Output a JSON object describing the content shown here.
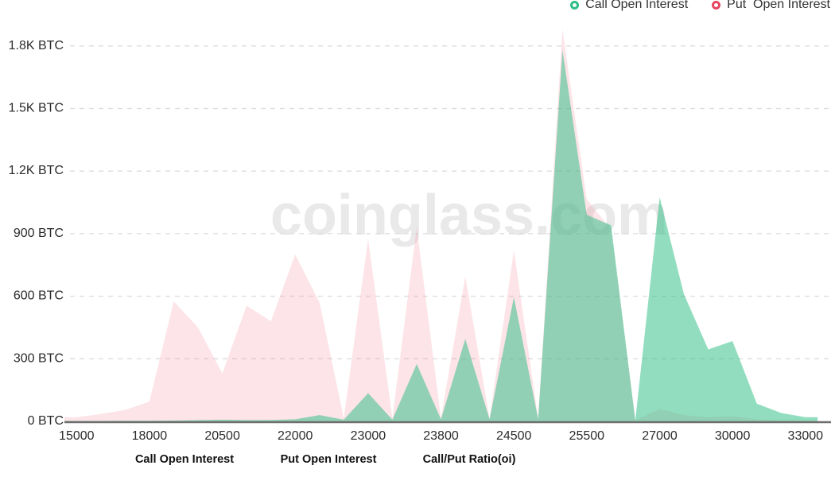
{
  "watermark": "coinglass.com",
  "legend": {
    "items": [
      {
        "label": "Call Open Interest",
        "color": "#2ebd85"
      },
      {
        "label": "Put  Open Interest",
        "color": "#e84560"
      }
    ]
  },
  "footer_tabs": [
    {
      "label": "Call Open Interest"
    },
    {
      "label": "Put Open Interest"
    },
    {
      "label": "Call/Put Ratio(oi)"
    }
  ],
  "chart_data": {
    "type": "area",
    "title": "",
    "xlabel": "",
    "ylabel": "",
    "unit": "BTC",
    "ylim": [
      0,
      1950
    ],
    "grid": "horizontal-dashed",
    "legend_position": "top-right",
    "categories": [
      "15000",
      "16000",
      "17000",
      "18000",
      "19000",
      "20000",
      "20500",
      "21000",
      "21500",
      "22000",
      "22250",
      "22750",
      "23000",
      "23250",
      "23500",
      "23800",
      "24000",
      "24250",
      "24500",
      "24750",
      "25000",
      "25500",
      "26000",
      "26500",
      "27000",
      "28000",
      "29000",
      "30000",
      "31000",
      "32000",
      "33000"
    ],
    "x_tick_labels": [
      "15000",
      "18000",
      "20500",
      "22000",
      "23000",
      "23800",
      "24500",
      "25500",
      "27000",
      "30000",
      "33000"
    ],
    "y_ticks": [
      "0 BTC",
      "300 BTC",
      "600 BTC",
      "900 BTC",
      "1.2K BTC",
      "1.5K BTC",
      "1.8K BTC"
    ],
    "series": [
      {
        "name": "Put Open Interest",
        "color": "#e84560",
        "fill": "rgba(240,130,150,0.22)",
        "values": [
          20,
          35,
          55,
          95,
          575,
          450,
          230,
          555,
          480,
          800,
          570,
          15,
          875,
          15,
          930,
          15,
          695,
          15,
          820,
          15,
          1880,
          1065,
          920,
          5,
          60,
          30,
          20,
          25,
          10,
          5,
          5
        ]
      },
      {
        "name": "Call Open Interest",
        "color": "#2ebd85",
        "fill": "rgba(46,189,133,0.52)",
        "values": [
          2,
          2,
          3,
          3,
          4,
          6,
          8,
          6,
          7,
          10,
          30,
          8,
          135,
          8,
          275,
          10,
          395,
          10,
          595,
          12,
          1780,
          990,
          940,
          5,
          1075,
          610,
          345,
          385,
          85,
          40,
          20
        ]
      }
    ]
  }
}
